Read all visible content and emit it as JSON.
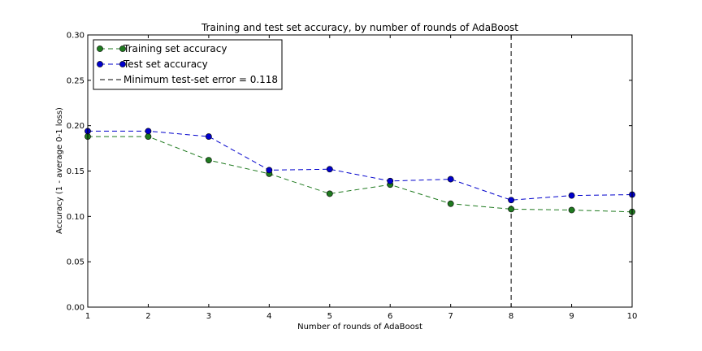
{
  "chart_data": {
    "type": "line",
    "title": "Training and test set accuracy, by number of rounds of AdaBoost",
    "xlabel": "Number of rounds of AdaBoost",
    "ylabel": "Accuracy (1 - average 0-1 loss)",
    "xlim": [
      1,
      10
    ],
    "ylim": [
      0.0,
      0.3
    ],
    "x": [
      1,
      2,
      3,
      4,
      5,
      6,
      7,
      8,
      9,
      10
    ],
    "xticks": [
      "1",
      "2",
      "3",
      "4",
      "5",
      "6",
      "7",
      "8",
      "9",
      "10"
    ],
    "yticks": [
      "0.00",
      "0.05",
      "0.10",
      "0.15",
      "0.20",
      "0.25",
      "0.30"
    ],
    "grid": false,
    "legend_position": "top-left",
    "series": [
      {
        "name": "Training set accuracy",
        "color": "#1f7a1f",
        "values": [
          0.188,
          0.188,
          0.162,
          0.147,
          0.125,
          0.135,
          0.114,
          0.108,
          0.107,
          0.105
        ]
      },
      {
        "name": "Test set accuracy",
        "color": "#0000cc",
        "values": [
          0.194,
          0.194,
          0.188,
          0.151,
          0.152,
          0.139,
          0.141,
          0.118,
          0.123,
          0.124
        ]
      }
    ],
    "vline": {
      "x": 8,
      "label": "Minimum test-set error = 0.118",
      "color": "#000000"
    }
  }
}
